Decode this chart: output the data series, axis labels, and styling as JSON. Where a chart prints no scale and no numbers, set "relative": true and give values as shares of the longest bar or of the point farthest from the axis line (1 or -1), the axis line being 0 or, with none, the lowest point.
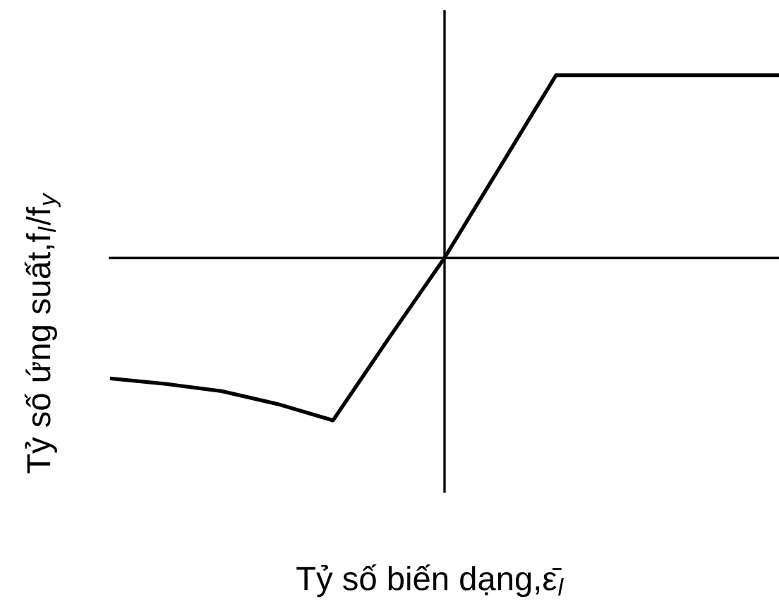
{
  "chart_data": {
    "type": "line",
    "xlabel": "Tỷ số biến dạng,ε̄$_{l}$",
    "ylabel": "Tỷ số ứng suất,f$_{l}$/f$_{y}$",
    "categories": [
      null,
      null,
      null,
      null,
      null,
      null,
      null,
      null,
      null,
      null,
      null,
      null,
      null
    ],
    "values": [
      -0.66,
      -0.69,
      -0.73,
      -0.8,
      -0.89,
      -0.44,
      0,
      0.5,
      1,
      1,
      1,
      1,
      1
    ],
    "color": "#000000",
    "relative": true
  }
}
